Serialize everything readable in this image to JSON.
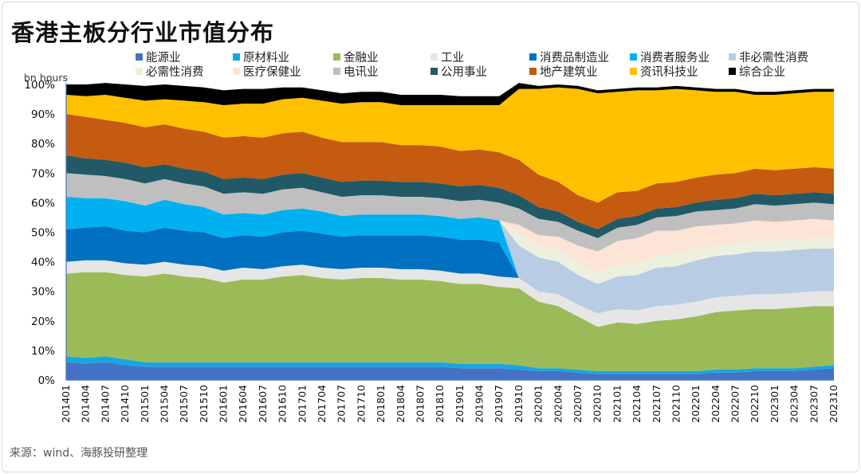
{
  "title": "香港主板分行业市值分布",
  "source": "来源：wind、海豚投研整理",
  "unit_label": "bn hours",
  "colors": {
    "能源业": "#4472C4",
    "原材料业": "#17A7E0",
    "金融业": "#9BBB59",
    "工业": "#E6E6E6",
    "消费品制造业": "#0070C0",
    "消费者服务业": "#00B0F0",
    "非必需性消费": "#B8CCE4",
    "必需性消费": "#EBF1DE",
    "医疗保健业": "#FCE4D6",
    "电讯业": "#BFBFBF",
    "公用事业": "#215967",
    "地产建筑业": "#C55A11",
    "资讯科技业": "#FFC000",
    "综合企业": "#000000"
  },
  "chart_data": {
    "type": "area",
    "stacked": true,
    "title": "香港主板分行业市值分布",
    "ylabel": "",
    "ylim": [
      0,
      100
    ],
    "yticks": [
      "0%",
      "10%",
      "20%",
      "30%",
      "40%",
      "50%",
      "60%",
      "70%",
      "80%",
      "90%",
      "100%"
    ],
    "x_tick_labels": [
      "201401",
      "201404",
      "201407",
      "201410",
      "201501",
      "201504",
      "201507",
      "201510",
      "201601",
      "201604",
      "201607",
      "201610",
      "201701",
      "201704",
      "201707",
      "201710",
      "201801",
      "201804",
      "201807",
      "201810",
      "201901",
      "201904",
      "201907",
      "201910",
      "202001",
      "202004",
      "202007",
      "202010",
      "202101",
      "202104",
      "202107",
      "202110",
      "202201",
      "202204",
      "202207",
      "202210",
      "202301",
      "202304",
      "202307",
      "202310"
    ],
    "legend": [
      "能源业",
      "原材料业",
      "金融业",
      "工业",
      "消费品制造业",
      "消费者服务业",
      "非必需性消费",
      "必需性消费",
      "医疗保健业",
      "电讯业",
      "公用事业",
      "地产建筑业",
      "资讯科技业",
      "综合企业"
    ],
    "series": [
      {
        "name": "能源业",
        "values": [
          6,
          5.5,
          6,
          5,
          4.5,
          4.5,
          4.5,
          4.5,
          4.5,
          4.5,
          4.5,
          4.5,
          4.5,
          4.5,
          4.5,
          4.5,
          4.5,
          4.5,
          4.5,
          4.5,
          4,
          4,
          4,
          3.5,
          3,
          3,
          2.5,
          2,
          2,
          2,
          2,
          2,
          2,
          2.5,
          2.5,
          3,
          3,
          3,
          3.5,
          4
        ]
      },
      {
        "name": "原材料业",
        "values": [
          2,
          2,
          2,
          2,
          1.5,
          1.5,
          1.5,
          1.5,
          1.5,
          1.5,
          1.5,
          1.5,
          1.5,
          1.5,
          1.5,
          1.5,
          1.5,
          1.5,
          1.5,
          1.5,
          1.5,
          1.5,
          1.5,
          1.5,
          1,
          1,
          1,
          1,
          1,
          1,
          1,
          1,
          1,
          1,
          1,
          1,
          1,
          1,
          1,
          1
        ]
      },
      {
        "name": "金融业",
        "values": [
          28,
          29,
          28.5,
          28.5,
          29,
          30,
          29,
          28.5,
          27,
          28,
          28,
          29,
          29.5,
          28.5,
          28,
          28.5,
          28.5,
          28,
          28,
          27.5,
          27,
          27,
          26,
          26,
          22.5,
          21,
          18,
          15,
          16.5,
          16,
          17,
          17.5,
          18.5,
          19.5,
          20,
          20,
          20,
          20.5,
          20.5,
          20
        ]
      },
      {
        "name": "工业",
        "values": [
          4,
          4,
          4,
          4,
          4,
          4,
          4,
          4,
          4,
          4,
          3.5,
          3.5,
          3.5,
          3.5,
          3.5,
          3.5,
          3.5,
          3.5,
          3.5,
          3.5,
          3.5,
          3.5,
          3.5,
          3.5,
          3.5,
          4,
          4,
          4.5,
          4.5,
          4.5,
          5,
          5,
          5,
          5,
          5,
          5,
          5,
          5,
          5,
          5
        ]
      },
      {
        "name": "消费品制造业",
        "values": [
          11,
          11,
          11.5,
          11,
          11,
          11.5,
          11.5,
          11.5,
          11,
          11,
          11,
          11.5,
          11.5,
          11.5,
          11,
          11,
          11,
          11.5,
          11.5,
          11.5,
          11.5,
          11.5,
          11.5,
          0,
          0,
          0,
          0,
          0,
          0,
          0,
          0,
          0,
          0,
          0,
          0,
          0,
          0,
          0,
          0,
          0
        ]
      },
      {
        "name": "消费者服务业",
        "values": [
          11,
          10,
          9.5,
          10,
          9,
          9.5,
          9,
          8.5,
          8,
          7.5,
          7.5,
          7.5,
          7.5,
          7.5,
          7,
          7,
          7,
          7,
          7,
          7,
          7,
          7.5,
          7.5,
          0,
          0,
          0,
          0,
          0,
          0,
          0,
          0,
          0,
          0,
          0,
          0,
          0,
          0,
          0,
          0,
          0
        ]
      },
      {
        "name": "非必需性消费",
        "values": [
          0,
          0,
          0,
          0,
          0,
          0,
          0,
          0,
          0,
          0,
          0,
          0,
          0,
          0,
          0,
          0,
          0,
          0,
          0,
          0,
          0,
          0,
          0,
          11,
          11.5,
          11,
          10,
          10,
          11,
          12,
          13,
          13,
          14,
          14,
          14,
          14.5,
          14.5,
          14.5,
          14.5,
          14.5
        ]
      },
      {
        "name": "必需性消费",
        "values": [
          0,
          0,
          0,
          0,
          0,
          0,
          0,
          0,
          0,
          0,
          0,
          0,
          0,
          0,
          0,
          0,
          0,
          0,
          0,
          0,
          0,
          0,
          0,
          4,
          4,
          4,
          4,
          4,
          4,
          4,
          4,
          4,
          4,
          3.5,
          3.5,
          3.5,
          3.5,
          3.5,
          3.5,
          3.5
        ]
      },
      {
        "name": "医疗保健业",
        "values": [
          0,
          0,
          0,
          0,
          0,
          0,
          0,
          0,
          0,
          0,
          0,
          0,
          0,
          0,
          0,
          0,
          0,
          0,
          0,
          0,
          0,
          0,
          0,
          3,
          3.5,
          4.5,
          6,
          7,
          8,
          8.5,
          8.5,
          8,
          7.5,
          7,
          7,
          7,
          6.5,
          6.5,
          6.5,
          6
        ]
      },
      {
        "name": "电讯业",
        "values": [
          8,
          8,
          7.5,
          7.5,
          7.5,
          7,
          7,
          7,
          7,
          7,
          7,
          7,
          7,
          6.5,
          6.5,
          6.5,
          6.5,
          6,
          6,
          6,
          6,
          6,
          6,
          5.5,
          5.5,
          5,
          5,
          4.5,
          4.5,
          4.5,
          4.5,
          5,
          5,
          5,
          5,
          5.5,
          5.5,
          5.5,
          5.5,
          5.5
        ]
      },
      {
        "name": "公用事业",
        "values": [
          6,
          5.5,
          5.5,
          5.5,
          5.5,
          5,
          5,
          5,
          5,
          5,
          5,
          5,
          5,
          5,
          5,
          5,
          5,
          5,
          5,
          5,
          5,
          5,
          5,
          4.5,
          4,
          3.5,
          3,
          3,
          3,
          3,
          3,
          3,
          3,
          3.5,
          3.5,
          3.5,
          3.5,
          3.5,
          3.5,
          3.5
        ]
      },
      {
        "name": "地产建筑业",
        "values": [
          14,
          14,
          13.5,
          13.5,
          13.5,
          13.5,
          13.5,
          13.5,
          14,
          14,
          14,
          14,
          14,
          13.5,
          13.5,
          13,
          13,
          12.5,
          12.5,
          12.5,
          12,
          12,
          12,
          12,
          11,
          10,
          9,
          9,
          9,
          8.5,
          8.5,
          8.5,
          8.5,
          8.5,
          8.5,
          8.5,
          8.5,
          8.5,
          8.5,
          8.5
        ]
      },
      {
        "name": "资讯科技业",
        "values": [
          6.5,
          7,
          8.5,
          8.5,
          9,
          8.5,
          9.5,
          10,
          11,
          11,
          11.5,
          11.5,
          11.5,
          12.5,
          13,
          13.5,
          13.5,
          13.5,
          13.5,
          14,
          15.5,
          15,
          16,
          24,
          29,
          32,
          36,
          37,
          34,
          34,
          31.5,
          31.5,
          29.5,
          28,
          27.5,
          25,
          25.5,
          25.5,
          25.5,
          26
        ]
      },
      {
        "name": "综合企业",
        "values": [
          3.5,
          4,
          4,
          4.5,
          5,
          5,
          5,
          5,
          5,
          5,
          5,
          4,
          3.5,
          3.5,
          3.5,
          3.5,
          3.5,
          3.5,
          3.5,
          3.5,
          3,
          3,
          3,
          2,
          1,
          1,
          1,
          1,
          1,
          1,
          1,
          1,
          1,
          1,
          1,
          1,
          1,
          1,
          1,
          1
        ]
      }
    ]
  }
}
